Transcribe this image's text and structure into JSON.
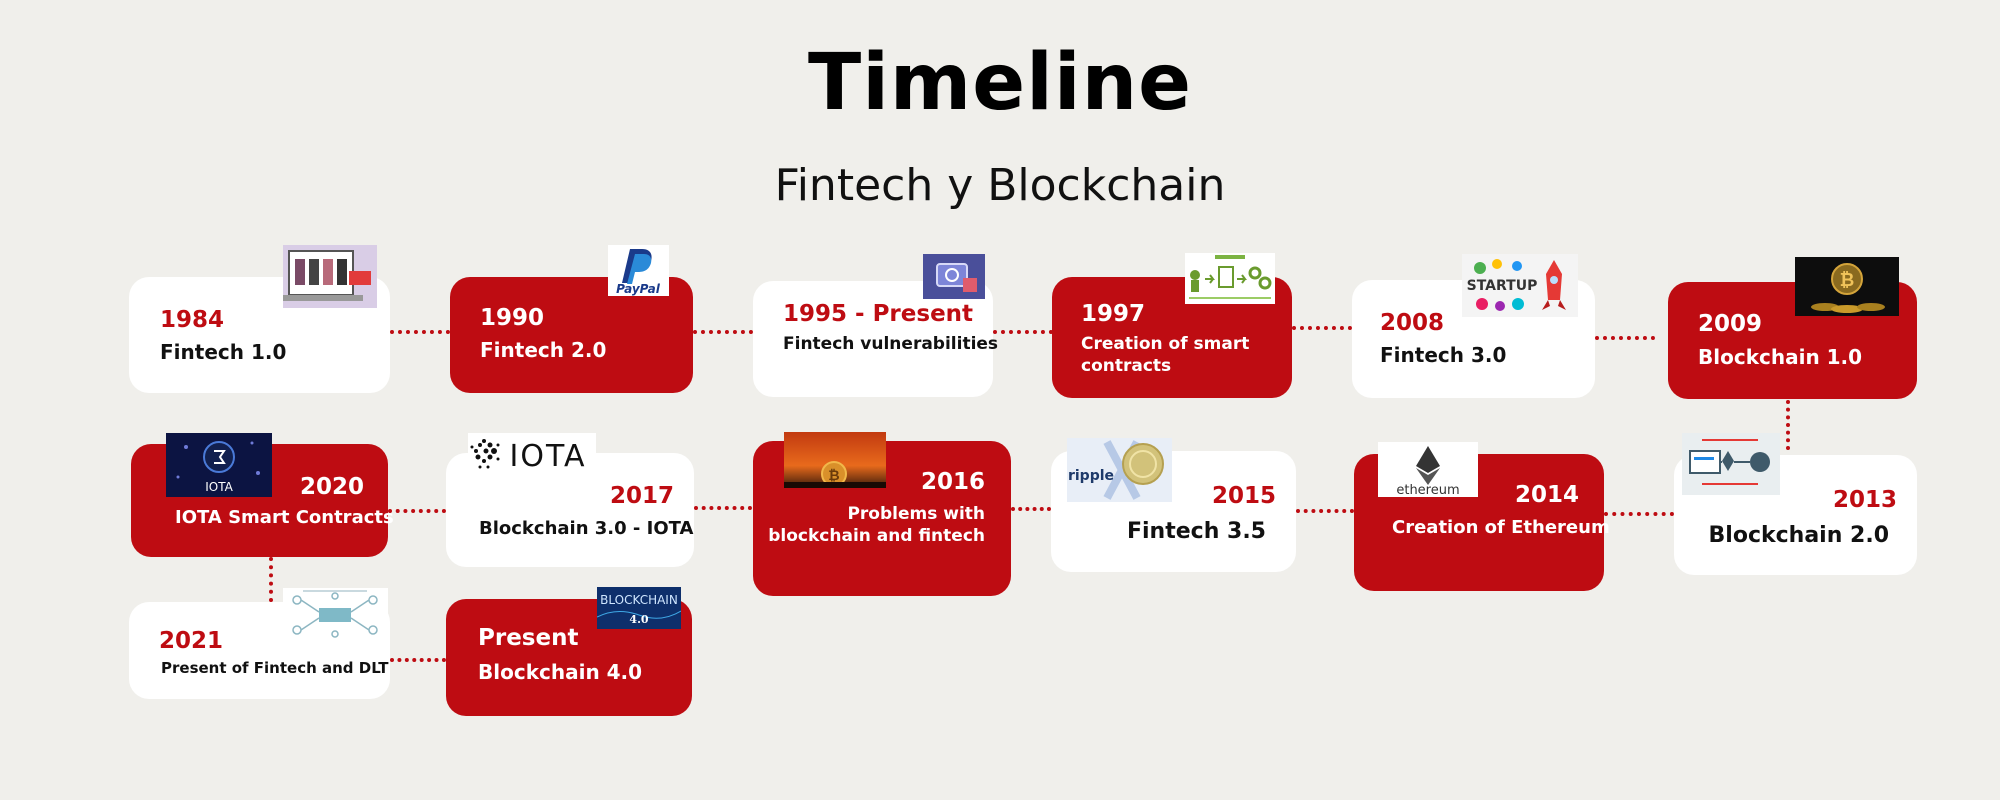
{
  "title": "Timeline",
  "subtitle": "Fintech y Blockchain",
  "events": [
    {
      "year": "1984",
      "label": "Fintech 1.0"
    },
    {
      "year": "1990",
      "label": "Fintech 2.0"
    },
    {
      "year": "1995 - Present",
      "label": "Fintech vulnerabilities"
    },
    {
      "year": "1997",
      "label_lines": [
        "Creation of smart",
        "contracts"
      ]
    },
    {
      "year": "2008",
      "label": "Fintech 3.0"
    },
    {
      "year": "2009",
      "label": "Blockchain 1.0"
    },
    {
      "year": "2013",
      "label": "Blockchain 2.0"
    },
    {
      "year": "2014",
      "label": "Creation of Ethereum"
    },
    {
      "year": "2015",
      "label": "Fintech 3.5"
    },
    {
      "year": "2016",
      "label_lines": [
        "Problems with",
        "blockchain and fintech"
      ]
    },
    {
      "year": "2017",
      "label": "Blockchain 3.0 - IOTA"
    },
    {
      "year": "2020",
      "label": "IOTA Smart Contracts"
    },
    {
      "year": "2021",
      "label": "Present of Fintech and DLT"
    },
    {
      "year": "Present",
      "label": "Blockchain 4.0"
    }
  ],
  "logos": {
    "paypal": "PayPal",
    "iota": "IOTA",
    "ripple": "ripple",
    "ethereum": "ethereum",
    "startup": "STARTUP",
    "blockchain4": "BLOCKCHAIN",
    "blockchain4_version": "4.0"
  },
  "colors": {
    "accent": "#be0c12",
    "background": "#f0efeb",
    "card_white": "#ffffff"
  }
}
